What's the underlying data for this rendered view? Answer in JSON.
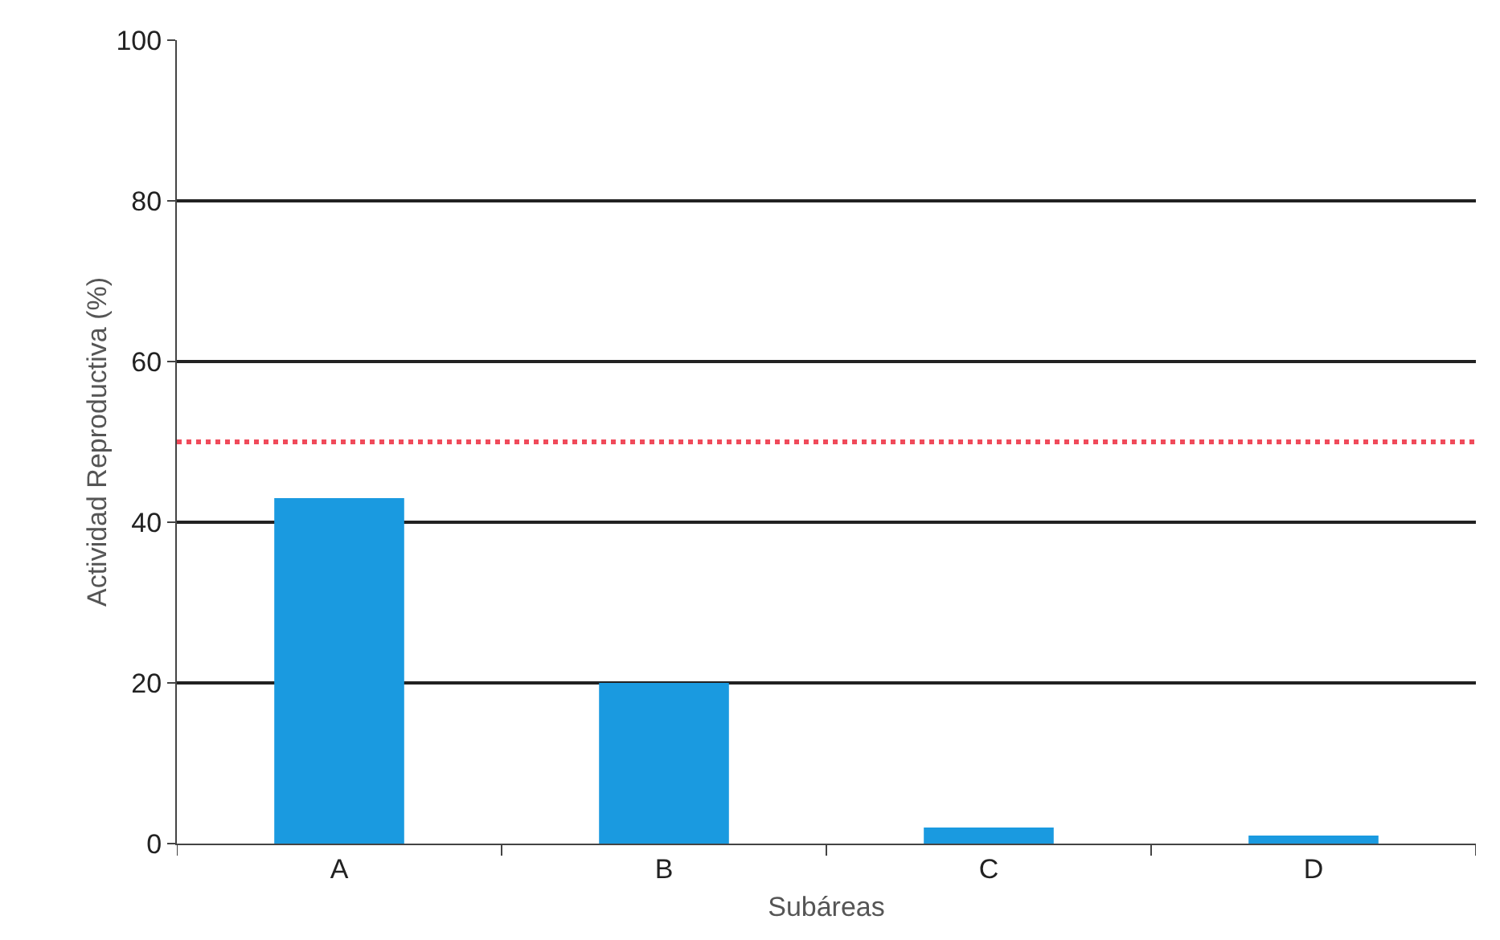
{
  "chart_data": {
    "type": "bar",
    "xlabel": "Subáreas",
    "ylabel": "Actividad Reproductiva (%)",
    "categories": [
      "A",
      "B",
      "C",
      "D"
    ],
    "values": [
      43,
      20,
      2,
      1
    ],
    "color": "#1a9ae0",
    "ylim": [
      0,
      100
    ],
    "yticks": [
      0,
      20,
      40,
      60,
      80,
      100
    ],
    "grid": "y",
    "ref_lines": [
      {
        "axis": "y",
        "value": 50,
        "color": "#f04a5a",
        "line_style": "dotted"
      }
    ]
  }
}
